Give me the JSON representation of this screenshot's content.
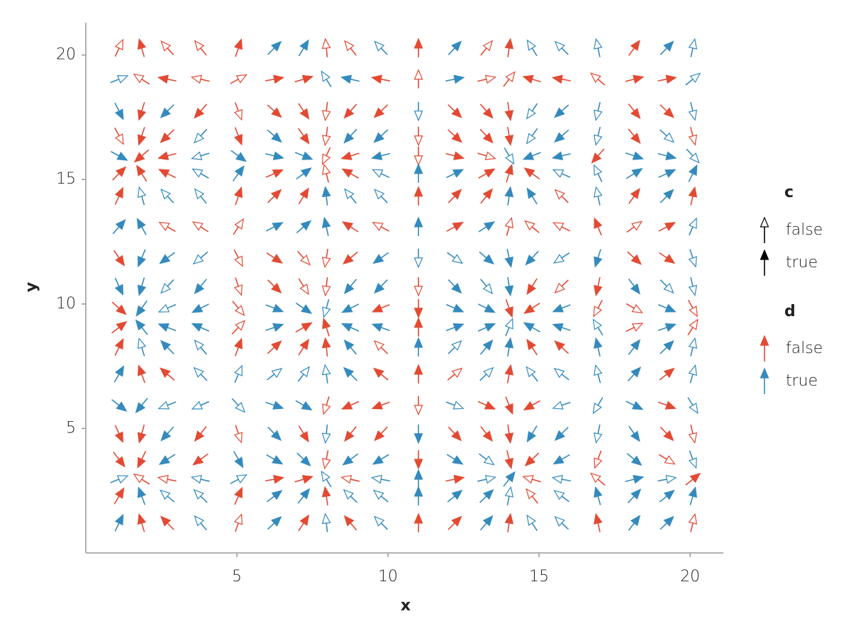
{
  "chart_data": {
    "type": "quiver",
    "x_label": "x",
    "y_label": "y",
    "xlim": [
      0,
      21.1
    ],
    "ylim": [
      0,
      21.3
    ],
    "xticks": [
      5,
      10,
      15,
      20
    ],
    "yticks": [
      5,
      10,
      15,
      20
    ],
    "x": [
      1.1,
      1.85,
      2.7,
      3.8,
      5.05,
      6.24,
      7.21,
      7.96,
      8.76,
      9.77,
      11.01,
      12.21,
      13.26,
      14.01,
      14.77,
      15.75,
      16.95,
      18.15,
      19.23,
      20.09
    ],
    "y": [
      20.28,
      19.03,
      17.75,
      16.75,
      15.95,
      15.24,
      14.33,
      13.1,
      11.85,
      10.71,
      9.83,
      9.06,
      8.26,
      7.18,
      5.93,
      4.79,
      3.76,
      2.96,
      2.28,
      1.2
    ],
    "u": [
      0.45,
      -0.28,
      -0.9,
      -0.79,
      0.33,
      1.0,
      0.6,
      -0.11,
      -0.79,
      -0.94,
      0.0,
      0.93,
      0.79,
      0.14,
      -0.61,
      -1.0,
      -0.21,
      0.71,
      0.96,
      0.22
    ],
    "v": [
      0.99,
      0.18,
      -0.89,
      -0.86,
      -0.24,
      0.45,
      0.98,
      0.51,
      -0.66,
      -0.96,
      -0.4,
      0.35,
      0.92,
      0.78,
      -0.35,
      -1.0,
      -0.58,
      0.18,
      0.76,
      0.93
    ],
    "d_colors": {
      "false": "#e24a33",
      "true": "#348abd"
    },
    "legend": [
      {
        "title": "c",
        "labels": [
          "false",
          "true"
        ]
      },
      {
        "title": "d",
        "labels": [
          "false",
          "true"
        ]
      }
    ],
    "c": [
      [
        false,
        true,
        false,
        false,
        true,
        true,
        true,
        false,
        false,
        false,
        true,
        true,
        false,
        true,
        false,
        false,
        false,
        true,
        true,
        false
      ],
      [
        false,
        false,
        true,
        false,
        false,
        true,
        true,
        false,
        true,
        true,
        false,
        true,
        false,
        false,
        true,
        true,
        false,
        true,
        true,
        false
      ],
      [
        true,
        true,
        true,
        true,
        false,
        true,
        true,
        false,
        true,
        true,
        false,
        true,
        true,
        true,
        false,
        true,
        false,
        true,
        true,
        false
      ],
      [
        false,
        true,
        true,
        false,
        true,
        true,
        true,
        false,
        true,
        true,
        false,
        true,
        true,
        true,
        false,
        true,
        false,
        true,
        false,
        false
      ],
      [
        true,
        true,
        true,
        false,
        true,
        true,
        true,
        false,
        true,
        true,
        false,
        true,
        false,
        false,
        true,
        true,
        true,
        true,
        true,
        false
      ],
      [
        true,
        true,
        true,
        false,
        true,
        true,
        true,
        false,
        true,
        false,
        true,
        true,
        true,
        true,
        true,
        false,
        false,
        true,
        true,
        true
      ],
      [
        true,
        false,
        false,
        false,
        true,
        true,
        true,
        true,
        false,
        false,
        true,
        true,
        true,
        true,
        true,
        false,
        false,
        true,
        true,
        true
      ],
      [
        true,
        true,
        false,
        false,
        false,
        true,
        true,
        true,
        true,
        false,
        true,
        true,
        true,
        false,
        false,
        false,
        true,
        false,
        true,
        false
      ],
      [
        true,
        true,
        true,
        false,
        false,
        true,
        false,
        false,
        true,
        true,
        false,
        false,
        true,
        true,
        true,
        false,
        true,
        true,
        true,
        false
      ],
      [
        true,
        true,
        false,
        true,
        false,
        true,
        false,
        false,
        true,
        true,
        false,
        true,
        false,
        true,
        true,
        false,
        true,
        true,
        false,
        false
      ],
      [
        true,
        true,
        false,
        true,
        false,
        true,
        true,
        false,
        true,
        true,
        true,
        true,
        true,
        true,
        true,
        true,
        false,
        false,
        true,
        false
      ],
      [
        true,
        true,
        true,
        true,
        false,
        true,
        true,
        true,
        true,
        true,
        true,
        true,
        true,
        false,
        true,
        true,
        false,
        false,
        true,
        false
      ],
      [
        true,
        false,
        true,
        false,
        true,
        true,
        true,
        true,
        true,
        false,
        true,
        false,
        true,
        true,
        true,
        true,
        true,
        true,
        true,
        false
      ],
      [
        true,
        true,
        true,
        false,
        false,
        false,
        false,
        false,
        true,
        true,
        true,
        false,
        false,
        true,
        false,
        false,
        false,
        true,
        true,
        false
      ],
      [
        true,
        true,
        false,
        false,
        false,
        true,
        true,
        false,
        true,
        true,
        false,
        false,
        true,
        true,
        true,
        false,
        false,
        true,
        true,
        false
      ],
      [
        true,
        true,
        true,
        true,
        false,
        true,
        true,
        false,
        true,
        true,
        true,
        true,
        true,
        true,
        true,
        true,
        false,
        true,
        true,
        false
      ],
      [
        true,
        true,
        true,
        true,
        true,
        true,
        true,
        false,
        true,
        true,
        true,
        true,
        false,
        true,
        true,
        true,
        false,
        true,
        false,
        false
      ],
      [
        false,
        false,
        false,
        false,
        false,
        true,
        true,
        false,
        false,
        false,
        true,
        true,
        false,
        true,
        false,
        false,
        false,
        true,
        false,
        true
      ],
      [
        true,
        true,
        false,
        false,
        true,
        true,
        true,
        true,
        false,
        false,
        true,
        true,
        true,
        false,
        false,
        false,
        true,
        true,
        true,
        true
      ],
      [
        true,
        true,
        true,
        false,
        false,
        true,
        true,
        false,
        true,
        false,
        true,
        true,
        true,
        true,
        false,
        false,
        true,
        true,
        true,
        false
      ]
    ],
    "d": [
      [
        false,
        false,
        false,
        false,
        false,
        true,
        true,
        false,
        false,
        true,
        false,
        true,
        false,
        false,
        true,
        true,
        true,
        false,
        true,
        true
      ],
      [
        true,
        false,
        false,
        false,
        false,
        false,
        false,
        true,
        true,
        false,
        false,
        true,
        false,
        false,
        false,
        false,
        false,
        false,
        false,
        true
      ],
      [
        true,
        false,
        true,
        false,
        false,
        false,
        false,
        false,
        false,
        false,
        true,
        false,
        false,
        false,
        true,
        true,
        true,
        false,
        false,
        true
      ],
      [
        false,
        false,
        false,
        true,
        false,
        true,
        false,
        false,
        true,
        true,
        false,
        false,
        false,
        false,
        true,
        true,
        true,
        false,
        true,
        false
      ],
      [
        true,
        false,
        false,
        true,
        true,
        true,
        true,
        false,
        false,
        true,
        false,
        false,
        false,
        true,
        true,
        true,
        false,
        true,
        true,
        true
      ],
      [
        false,
        false,
        false,
        true,
        true,
        false,
        true,
        false,
        false,
        true,
        true,
        true,
        false,
        false,
        false,
        true,
        true,
        true,
        true,
        true
      ],
      [
        false,
        true,
        true,
        true,
        false,
        false,
        false,
        true,
        true,
        true,
        false,
        false,
        false,
        true,
        true,
        false,
        true,
        false,
        true,
        false
      ],
      [
        true,
        true,
        false,
        false,
        false,
        true,
        true,
        true,
        false,
        false,
        true,
        false,
        true,
        false,
        false,
        false,
        false,
        false,
        false,
        true
      ],
      [
        false,
        true,
        true,
        true,
        false,
        false,
        false,
        false,
        false,
        true,
        true,
        true,
        true,
        true,
        true,
        true,
        true,
        false,
        false,
        true
      ],
      [
        true,
        true,
        true,
        true,
        false,
        false,
        false,
        false,
        true,
        true,
        false,
        true,
        true,
        true,
        false,
        false,
        false,
        true,
        true,
        true
      ],
      [
        false,
        true,
        true,
        true,
        false,
        true,
        true,
        true,
        true,
        false,
        false,
        true,
        true,
        false,
        false,
        true,
        false,
        false,
        true,
        false
      ],
      [
        false,
        true,
        true,
        true,
        false,
        true,
        false,
        false,
        true,
        true,
        false,
        true,
        true,
        true,
        true,
        true,
        true,
        false,
        true,
        false
      ],
      [
        false,
        true,
        true,
        true,
        false,
        false,
        false,
        false,
        true,
        false,
        true,
        true,
        true,
        true,
        false,
        false,
        true,
        true,
        true,
        true
      ],
      [
        true,
        false,
        false,
        true,
        true,
        true,
        true,
        true,
        true,
        false,
        false,
        false,
        true,
        false,
        true,
        true,
        true,
        true,
        false,
        true
      ],
      [
        true,
        true,
        true,
        true,
        true,
        true,
        true,
        false,
        false,
        false,
        false,
        true,
        false,
        false,
        false,
        true,
        true,
        true,
        false,
        true
      ],
      [
        false,
        false,
        true,
        false,
        false,
        true,
        false,
        true,
        false,
        false,
        true,
        false,
        false,
        false,
        true,
        true,
        true,
        true,
        false,
        false
      ],
      [
        false,
        false,
        true,
        false,
        true,
        true,
        true,
        false,
        true,
        true,
        false,
        true,
        true,
        false,
        false,
        true,
        false,
        true,
        false,
        true
      ],
      [
        true,
        false,
        false,
        true,
        true,
        false,
        false,
        true,
        false,
        true,
        true,
        false,
        true,
        true,
        false,
        true,
        false,
        true,
        true,
        false
      ],
      [
        false,
        true,
        true,
        true,
        false,
        true,
        true,
        false,
        true,
        true,
        true,
        true,
        true,
        true,
        false,
        true,
        true,
        true,
        true,
        true
      ],
      [
        true,
        false,
        false,
        true,
        false,
        true,
        false,
        true,
        false,
        true,
        false,
        false,
        true,
        false,
        true,
        true,
        false,
        true,
        true,
        false
      ]
    ]
  }
}
